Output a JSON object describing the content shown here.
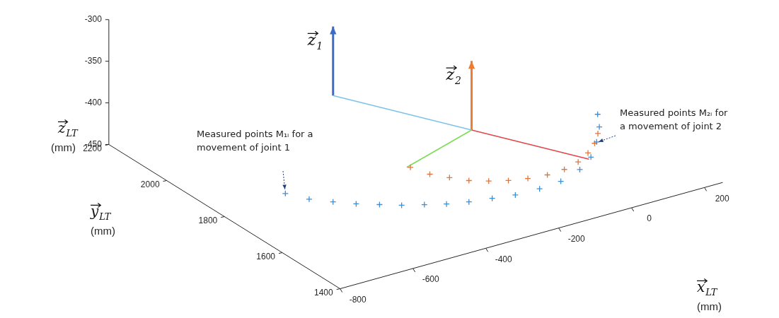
{
  "chart_data": {
    "type": "scatter3d",
    "xlabel": {
      "symbol": "x",
      "subscript": "LT",
      "unit": "(mm)"
    },
    "ylabel": {
      "symbol": "y",
      "subscript": "LT",
      "unit": "(mm)"
    },
    "zlabel": {
      "symbol": "z",
      "subscript": "LT",
      "unit": "(mm)"
    },
    "xlim": [
      -800,
      250
    ],
    "xticks": [
      -800,
      -600,
      -400,
      -200,
      0,
      200
    ],
    "ylim": [
      1400,
      2200
    ],
    "yticks": [
      1400,
      1600,
      1800,
      2000,
      2200
    ],
    "zlim": [
      -450,
      -300
    ],
    "zticks": [
      -450,
      -400,
      -350,
      -300
    ],
    "grid": false,
    "series": [
      {
        "color": "#3b8fd9",
        "marker": "cross",
        "x": [
          -690,
          -662,
          -625,
          -587,
          -545,
          -505,
          -460,
          -416,
          -367,
          -312,
          -258,
          -193,
          -130,
          -58,
          1,
          58,
          109,
          144
        ],
        "y": [
          1728,
          1681,
          1645,
          1613,
          1585,
          1559,
          1537,
          1516,
          1500,
          1489,
          1477,
          1475,
          1481,
          1506,
          1542,
          1594,
          1649,
          1699
        ],
        "z": [
          -420,
          -420,
          -420,
          -420,
          -420,
          -420,
          -420,
          -420,
          -420,
          -420,
          -420,
          -420,
          -420,
          -420,
          -420,
          -420,
          -420,
          -420
        ]
      },
      {
        "color": "#e0763c",
        "marker": "cross",
        "x": [
          -373,
          -357,
          -330,
          -302,
          -266,
          -227,
          -184,
          -136,
          -87,
          -38,
          8,
          50,
          86
        ],
        "y": [
          1695,
          1648,
          1614,
          1582,
          1559,
          1540,
          1527,
          1520,
          1523,
          1537,
          1561,
          1591,
          1625
        ],
        "z": [
          -420,
          -420,
          -420,
          -420,
          -420,
          -420,
          -420,
          -420,
          -420,
          -420,
          -420,
          -420,
          -420
        ]
      }
    ],
    "segments": [
      {
        "color": "#7cc3ea",
        "from": [
          -352,
          1989,
          -400
        ],
        "to": [
          -194,
          1709,
          -400
        ]
      },
      {
        "color": "#7ddc5a",
        "from": [
          -194,
          1709,
          -400
        ],
        "to": [
          -380,
          1699,
          -420
        ]
      },
      {
        "color": "#e0474c",
        "from": [
          -194,
          1709,
          -400
        ],
        "to": [
          -9,
          1536,
          -420
        ]
      }
    ],
    "vectors": [
      {
        "label": {
          "symbol": "z",
          "subscript": "1"
        },
        "color": "#3a6cc6",
        "from": [
          -352,
          1989,
          -400
        ],
        "to": [
          -352,
          1989,
          -317
        ]
      },
      {
        "label": {
          "symbol": "z",
          "subscript": "2"
        },
        "color": "#ee7d32",
        "from": [
          -194,
          1709,
          -400
        ],
        "to": [
          -194,
          1709,
          -317
        ]
      }
    ],
    "annotations": [
      {
        "text": [
          "Measured points M₁ᵢ for a",
          "movement of joint 1"
        ],
        "target": [
          -690,
          1728,
          -420
        ]
      },
      {
        "text": [
          "Measured points M₂ᵢ for",
          "a movement of joint 2"
        ],
        "target": [
          50,
          1591,
          -420
        ]
      }
    ]
  }
}
